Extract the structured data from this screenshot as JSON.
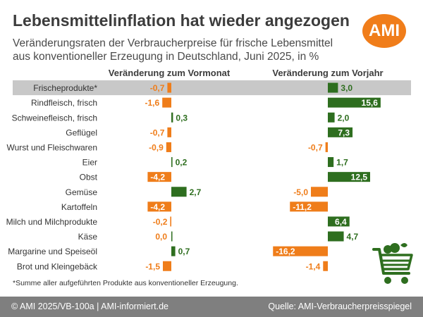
{
  "title": "Lebensmittelinflation hat wieder angezogen",
  "subtitle": "Veränderungsraten der Verbraucherpreise für frische Lebensmittel aus konventioneller Erzeugung in Deutschland, Juni 2025, in %",
  "logo_text": "AMI",
  "footnote": "*Summe aller aufgeführten Produkte aus konventioneller Erzeugung.",
  "footer": {
    "left": "© AMI 2025/VB-100a | AMI-informiert.de",
    "right": "Quelle: AMI-Verbraucherpreisspiegel"
  },
  "icons": {
    "logo": "ami-logo",
    "cart": "shopping-cart-icon"
  },
  "colors": {
    "positive": "#2e6e1f",
    "negative": "#ef7d1a",
    "highlight_row": "#c8c8c8",
    "negative_label": "#ef7d1a",
    "positive_label": "#2e6e1f"
  },
  "chart_data": {
    "type": "bar",
    "orientation": "horizontal",
    "categories": [
      "Frischeprodukte*",
      "Rindfleisch, frisch",
      "Schweinefleisch, frisch",
      "Geflügel",
      "Wurst und Fleischwaren",
      "Eier",
      "Obst",
      "Gemüse",
      "Kartoffeln",
      "Milch und Milchprodukte",
      "Käse",
      "Margarine und Speiseöl",
      "Brot und Kleingebäck"
    ],
    "series": [
      {
        "name": "Veränderung zum Vormonat",
        "values": [
          -0.7,
          -1.6,
          0.3,
          -0.7,
          -0.9,
          0.2,
          -4.2,
          2.7,
          -4.2,
          -0.2,
          0.0,
          0.7,
          -1.5
        ],
        "labels": [
          "-0,7",
          "-1,6",
          "0,3",
          "-0,7",
          "-0,9",
          "0,2",
          "-4,2",
          "2,7",
          "-4,2",
          "-0,2",
          "0,0",
          "0,7",
          "-1,5"
        ]
      },
      {
        "name": "Veränderung zum Vorjahr",
        "values": [
          3.0,
          15.6,
          2.0,
          7.3,
          -0.7,
          1.7,
          12.5,
          -5.0,
          -11.2,
          6.4,
          4.7,
          -16.2,
          -1.4
        ],
        "labels": [
          "3,0",
          "15,6",
          "2,0",
          "7,3",
          "-0,7",
          "1,7",
          "12,5",
          "-5,0",
          "-11,2",
          "6,4",
          "4,7",
          "-16,2",
          "-1,4"
        ]
      }
    ],
    "highlight_category": "Frischeprodukte*",
    "grid": false,
    "legend": "none"
  }
}
